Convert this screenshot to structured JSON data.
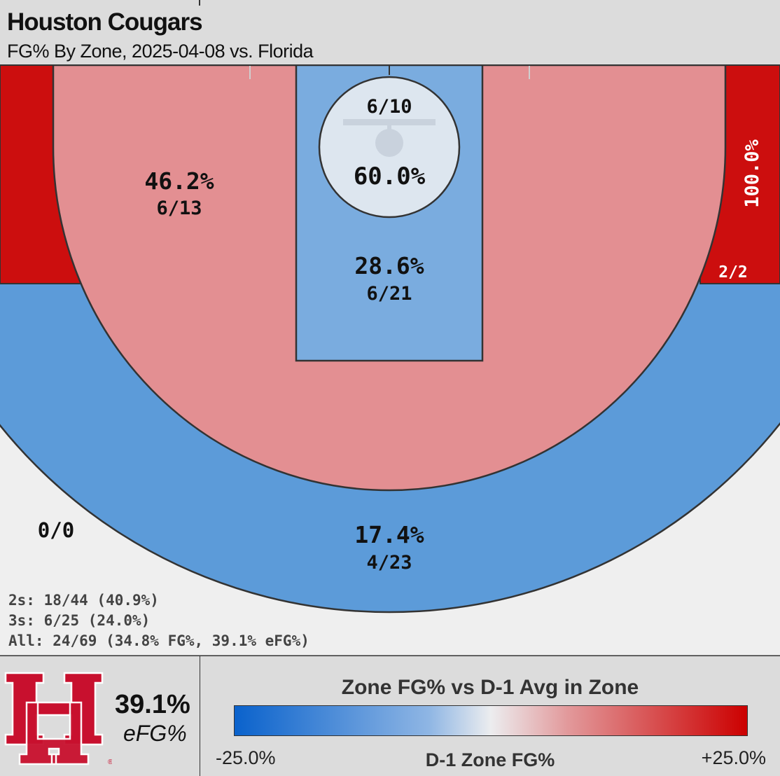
{
  "header": {
    "title": "Houston Cougars",
    "subtitle": "FG% By Zone, 2025-04-08 vs. Florida"
  },
  "zones": {
    "left_corner": {
      "label": "0/0"
    },
    "right_corner": {
      "pct": "100.0%",
      "frac": "2/2"
    },
    "rim": {
      "frac": "6/10",
      "pct": "60.0%"
    },
    "paint": {
      "pct": "28.6%",
      "frac": "6/21"
    },
    "midrange": {
      "pct": "46.2%",
      "frac": "6/13"
    },
    "three": {
      "pct": "17.4%",
      "frac": "4/23"
    }
  },
  "summary": {
    "twos": "2s: 18/44 (40.9%)",
    "threes": "3s: 6/25 (24.0%)",
    "all": "All: 24/69 (34.8% FG%, 39.1% eFG%)"
  },
  "team_stat": {
    "value": "39.1%",
    "label": "eFG%"
  },
  "legend": {
    "title": "Zone FG% vs D-1 Avg in Zone",
    "min": "-25.0%",
    "max": "+25.0%",
    "axis_label": "D-1 Zone FG%"
  },
  "colors": {
    "hot": "#cc0e0e",
    "warm": "#e38f92",
    "cool": "#5c9bd9",
    "paint": "#7aacdf",
    "rim": "#dde6ef",
    "court": "#efefef",
    "brand_red": "#c8102e"
  }
}
